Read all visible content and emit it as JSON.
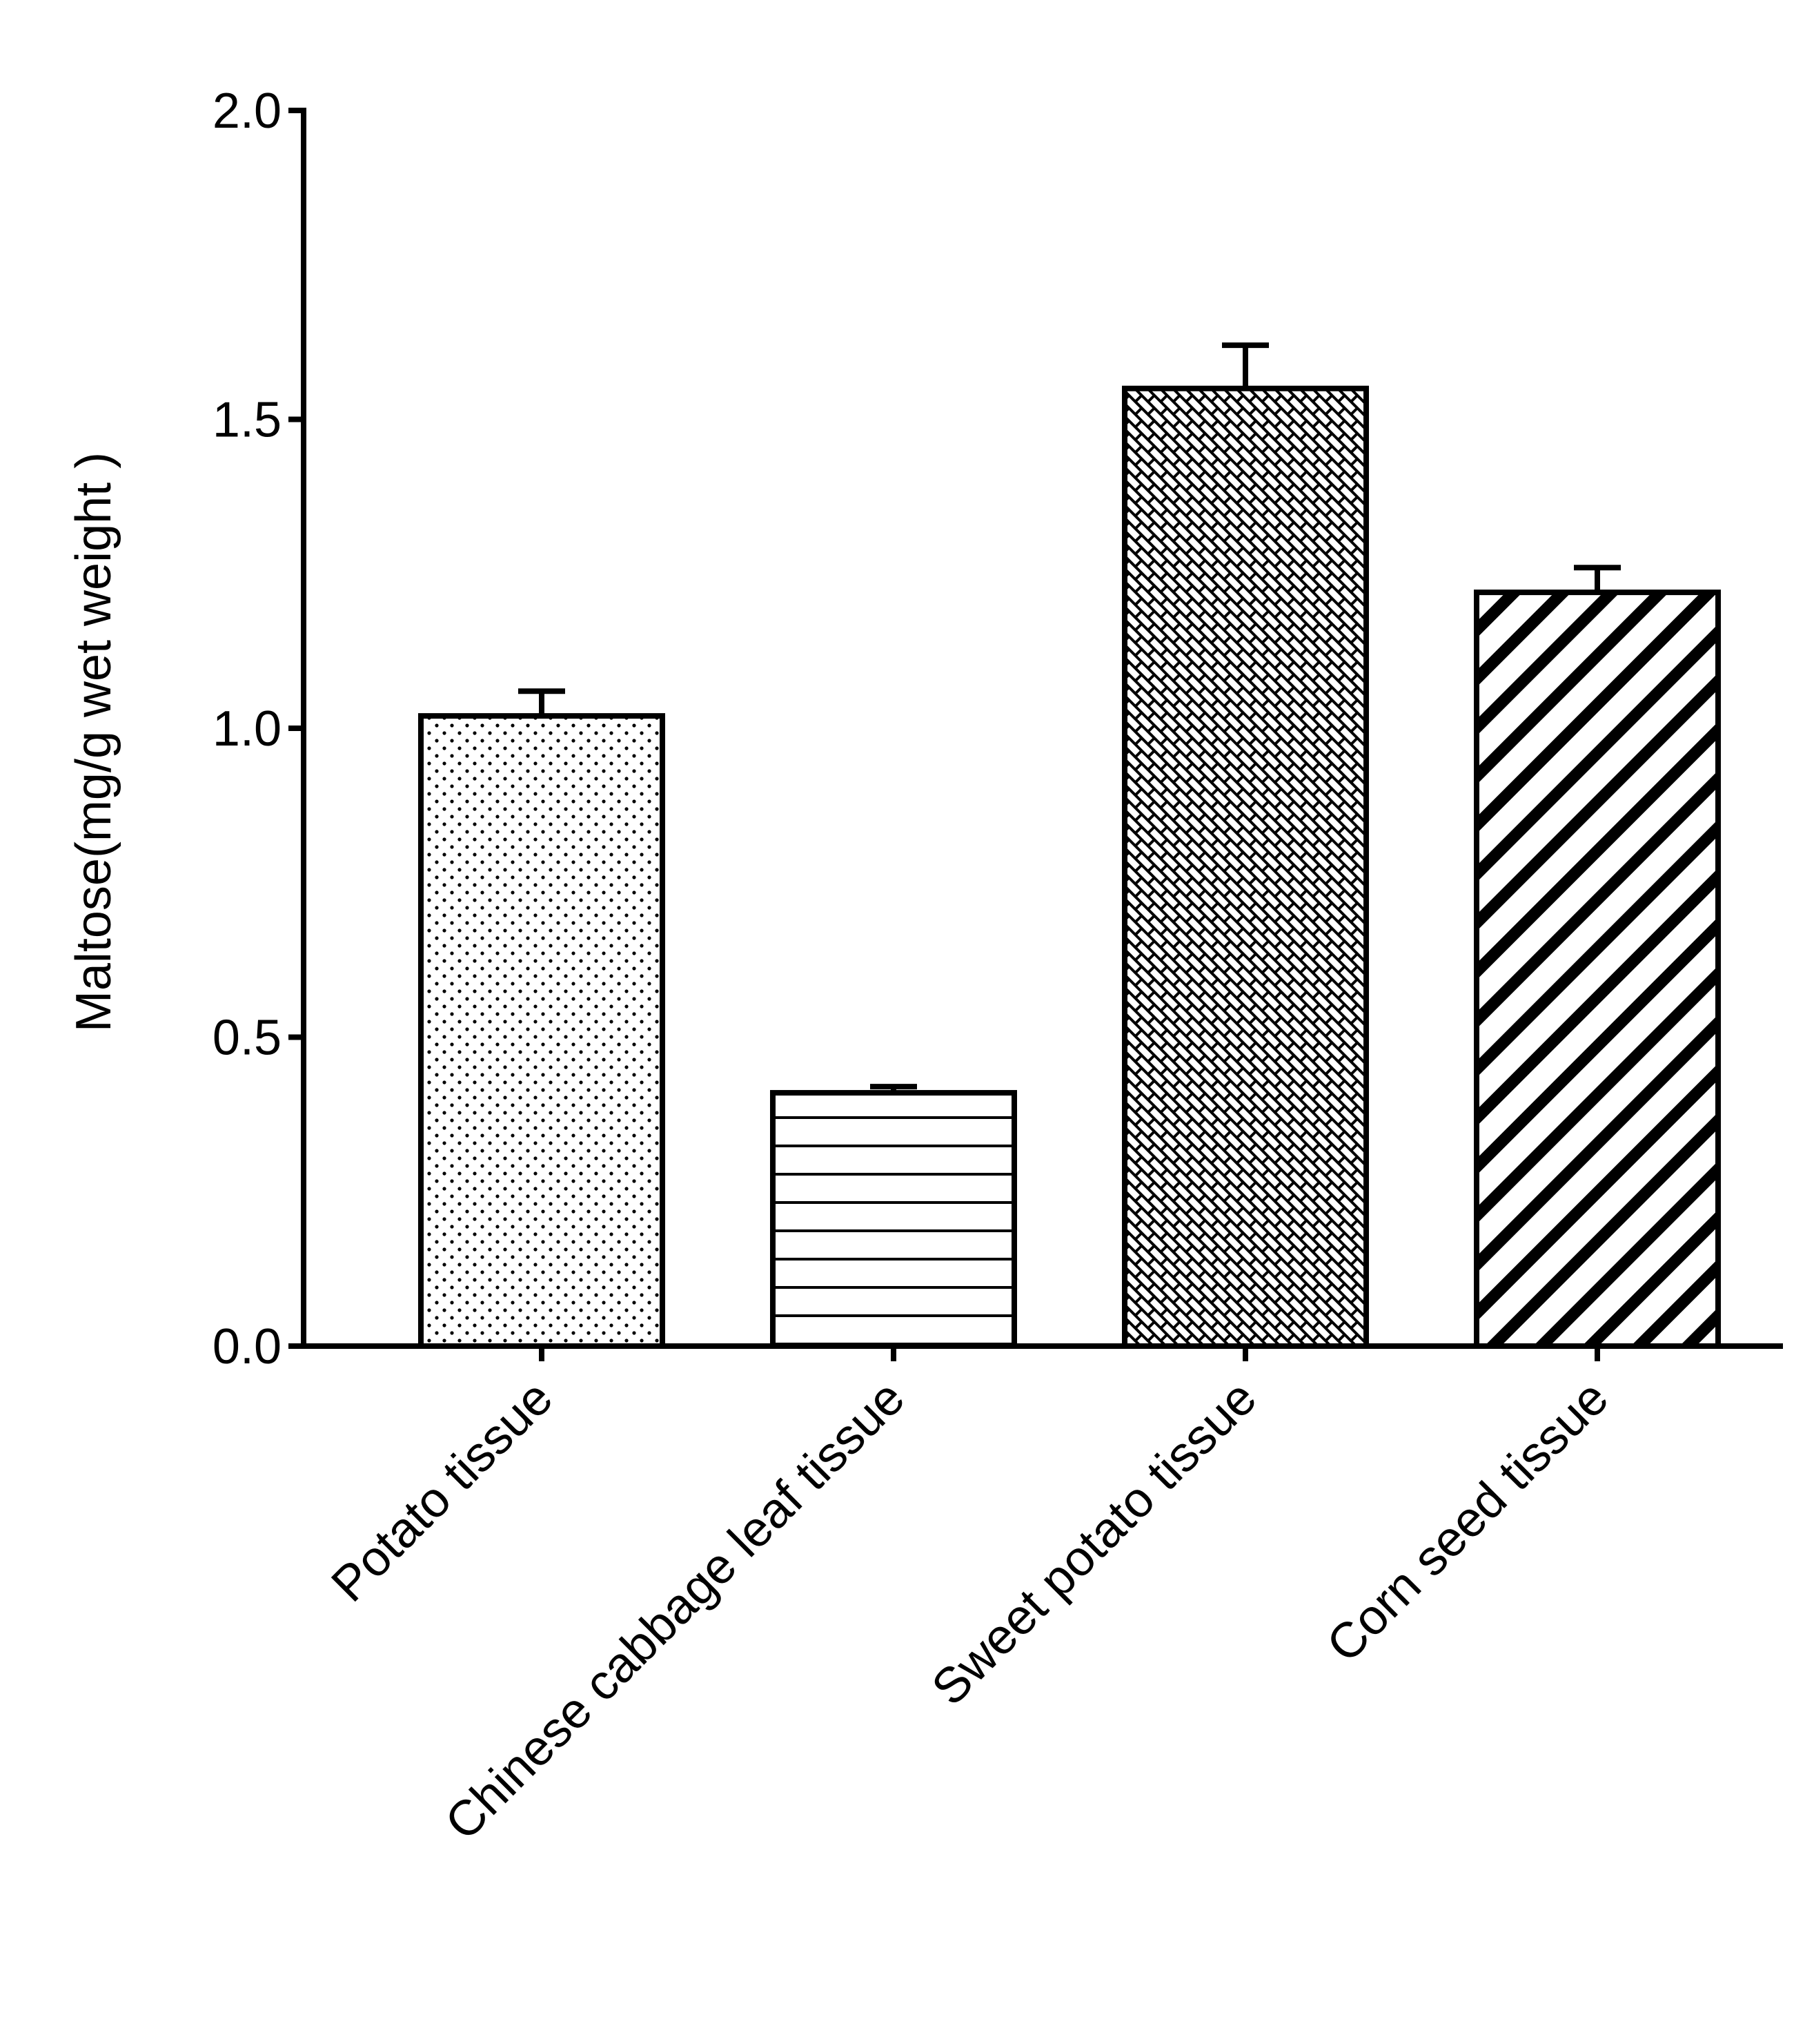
{
  "chart_data": {
    "type": "bar",
    "title": "",
    "xlabel": "",
    "ylabel": "Maltose(mg/g wet weight )",
    "ylim": [
      0,
      2.0
    ],
    "yticks": [
      0.0,
      0.5,
      1.0,
      1.5,
      2.0
    ],
    "ytick_labels": [
      "0.0",
      "0.5",
      "1.0",
      "1.5",
      "2.0"
    ],
    "grid": false,
    "legend": "none",
    "categories": [
      "Potato tissue",
      "Chinese cabbage leaf tissue",
      "Sweet potato tissue",
      "Corn seed tissue"
    ],
    "values": [
      1.02,
      0.41,
      1.55,
      1.22
    ],
    "errors": [
      0.04,
      0.01,
      0.07,
      0.04
    ],
    "patterns": [
      "dots",
      "horizontal-lines",
      "crosshatch-diagonal",
      "diagonal-stripes"
    ],
    "colors": {
      "stroke": "#000000",
      "fill": "#ffffff"
    }
  }
}
